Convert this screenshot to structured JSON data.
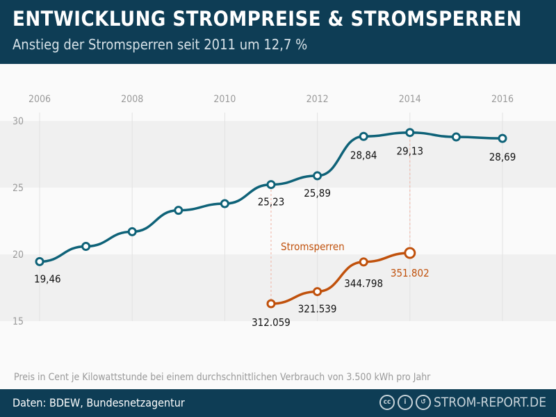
{
  "header": {
    "title": "ENTWICKLUNG STROMPREISE & STROMSPERREN",
    "subtitle": "Anstieg der Stromsperren seit 2011 um 12,7 %"
  },
  "note": "Preis in Cent je Kilowattstunde bei einem durchschnittlichen Verbrauch von 3.500 kWh pro Jahr",
  "footer": {
    "source": "Daten: BDEW, Bundesnetzagentur",
    "brand": "STROM-REPORT.DE",
    "icons": [
      "cc-icon",
      "by-icon",
      "sa-icon"
    ]
  },
  "chart_data": {
    "type": "line",
    "x": [
      2006,
      2007,
      2008,
      2009,
      2010,
      2011,
      2012,
      2013,
      2014,
      2015,
      2016
    ],
    "xticks": [
      "2006",
      "2008",
      "2010",
      "2012",
      "2014",
      "2016"
    ],
    "yticks": [
      "15",
      "20",
      "25",
      "30"
    ],
    "ylim": [
      15,
      30
    ],
    "series": [
      {
        "values": [
          19.46,
          20.6,
          21.7,
          23.3,
          23.8,
          25.23,
          25.89,
          28.84,
          29.13,
          28.8,
          28.69
        ],
        "labels": {
          "2006": "19,46",
          "2011": "25,23",
          "2012": "25,89",
          "2013": "28,84",
          "2014": "29,13",
          "2016": "28,69"
        },
        "color": "#0e6278"
      },
      {
        "name": "Stromsperren",
        "x": [
          2011,
          2012,
          2013,
          2014
        ],
        "values": [
          312059,
          321539,
          344798,
          351802
        ],
        "labels": [
          "312.059",
          "321.539",
          "344.798",
          "351.802"
        ],
        "color": "#c0510c"
      }
    ]
  }
}
